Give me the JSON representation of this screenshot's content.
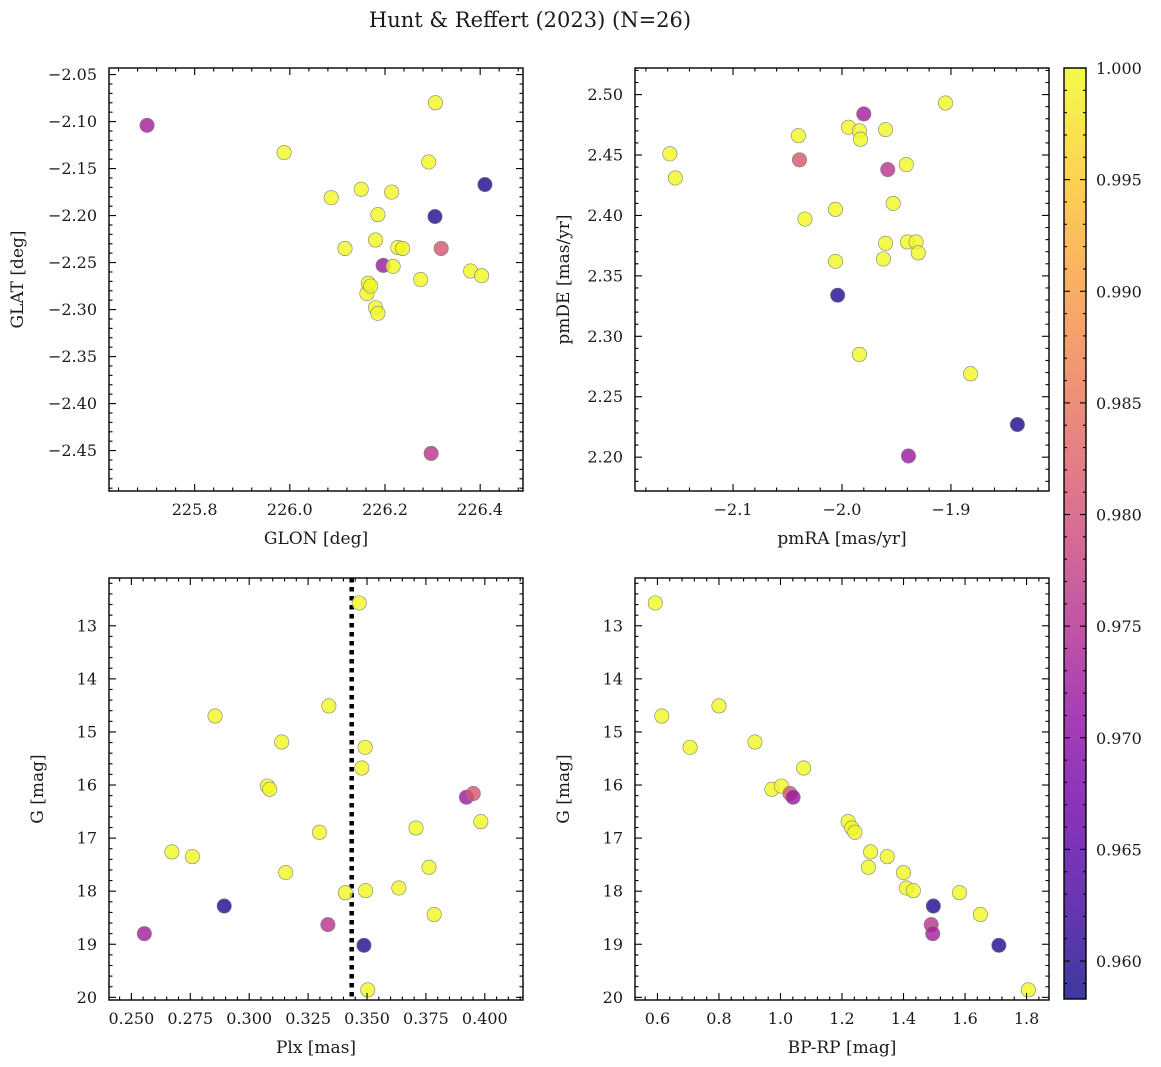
{
  "figure": {
    "title": "Hunt & Reffert (2023) (N=26)",
    "colorbar": {
      "colormap": "plasma",
      "alpha": 0.8,
      "range": [
        0.9583,
        1.0
      ],
      "ticks": [
        "0.960",
        "0.965",
        "0.970",
        "0.975",
        "0.980",
        "0.985",
        "0.990",
        "0.995",
        "1.000"
      ]
    },
    "marker_edge_color": "#808080"
  },
  "chart_data": [
    {
      "type": "scatter",
      "name": "position",
      "xlabel": "GLON [deg]",
      "ylabel": "GLAT [deg]",
      "xlim": [
        225.62,
        226.49
      ],
      "ylim": [
        -2.493,
        -2.043
      ],
      "y_inverted": false,
      "xticks": [
        "225.8",
        "226.0",
        "226.2",
        "226.4"
      ],
      "yticks": [
        "−2.05",
        "−2.10",
        "−2.15",
        "−2.20",
        "−2.25",
        "−2.30",
        "−2.35",
        "−2.40",
        "−2.45"
      ],
      "points": [
        {
          "x": 225.7,
          "y": -2.104,
          "c": 0.973
        },
        {
          "x": 225.988,
          "y": -2.133,
          "c": 1.0
        },
        {
          "x": 226.087,
          "y": -2.181,
          "c": 1.0
        },
        {
          "x": 226.116,
          "y": -2.235,
          "c": 1.0
        },
        {
          "x": 226.15,
          "y": -2.172,
          "c": 1.0
        },
        {
          "x": 226.162,
          "y": -2.283,
          "c": 1.0
        },
        {
          "x": 226.165,
          "y": -2.272,
          "c": 1.0
        },
        {
          "x": 226.17,
          "y": -2.275,
          "c": 1.0
        },
        {
          "x": 226.18,
          "y": -2.226,
          "c": 1.0
        },
        {
          "x": 226.18,
          "y": -2.298,
          "c": 1.0
        },
        {
          "x": 226.185,
          "y": -2.304,
          "c": 1.0
        },
        {
          "x": 226.185,
          "y": -2.199,
          "c": 1.0
        },
        {
          "x": 226.196,
          "y": -2.253,
          "c": 0.972
        },
        {
          "x": 226.214,
          "y": -2.175,
          "c": 1.0
        },
        {
          "x": 226.217,
          "y": -2.254,
          "c": 1.0
        },
        {
          "x": 226.227,
          "y": -2.234,
          "c": 1.0
        },
        {
          "x": 226.237,
          "y": -2.235,
          "c": 1.0
        },
        {
          "x": 226.275,
          "y": -2.268,
          "c": 1.0
        },
        {
          "x": 226.292,
          "y": -2.143,
          "c": 1.0
        },
        {
          "x": 226.306,
          "y": -2.08,
          "c": 1.0
        },
        {
          "x": 226.305,
          "y": -2.201,
          "c": 0.9597
        },
        {
          "x": 226.297,
          "y": -2.453,
          "c": 0.976
        },
        {
          "x": 226.318,
          "y": -2.235,
          "c": 0.981
        },
        {
          "x": 226.38,
          "y": -2.259,
          "c": 1.0
        },
        {
          "x": 226.403,
          "y": -2.264,
          "c": 1.0
        },
        {
          "x": 226.41,
          "y": -2.167,
          "c": 0.9595
        }
      ]
    },
    {
      "type": "scatter",
      "name": "proper-motion",
      "xlabel": "pmRA [mas/yr]",
      "ylabel": "pmDE [mas/yr]",
      "xlim": [
        -2.19,
        -1.81
      ],
      "ylim": [
        2.172,
        2.522
      ],
      "y_inverted": false,
      "xticks": [
        "−2.1",
        "−2.0",
        "−1.9"
      ],
      "yticks": [
        "2.20",
        "2.25",
        "2.30",
        "2.35",
        "2.40",
        "2.45",
        "2.50"
      ],
      "points": [
        {
          "x": -2.158,
          "y": 2.451,
          "c": 1.0
        },
        {
          "x": -2.153,
          "y": 2.431,
          "c": 1.0
        },
        {
          "x": -2.04,
          "y": 2.466,
          "c": 1.0
        },
        {
          "x": -2.039,
          "y": 2.446,
          "c": 0.981
        },
        {
          "x": -2.034,
          "y": 2.397,
          "c": 1.0
        },
        {
          "x": -2.006,
          "y": 2.405,
          "c": 1.0
        },
        {
          "x": -2.006,
          "y": 2.362,
          "c": 1.0
        },
        {
          "x": -2.004,
          "y": 2.334,
          "c": 0.9597
        },
        {
          "x": -1.994,
          "y": 2.473,
          "c": 1.0
        },
        {
          "x": -1.984,
          "y": 2.47,
          "c": 1.0
        },
        {
          "x": -1.983,
          "y": 2.463,
          "c": 1.0
        },
        {
          "x": -1.984,
          "y": 2.285,
          "c": 1.0
        },
        {
          "x": -1.98,
          "y": 2.484,
          "c": 0.973
        },
        {
          "x": -1.962,
          "y": 2.364,
          "c": 1.0
        },
        {
          "x": -1.96,
          "y": 2.471,
          "c": 1.0
        },
        {
          "x": -1.96,
          "y": 2.377,
          "c": 1.0
        },
        {
          "x": -1.958,
          "y": 2.438,
          "c": 0.976
        },
        {
          "x": -1.953,
          "y": 2.41,
          "c": 1.0
        },
        {
          "x": -1.941,
          "y": 2.442,
          "c": 1.0
        },
        {
          "x": -1.94,
          "y": 2.378,
          "c": 1.0
        },
        {
          "x": -1.932,
          "y": 2.378,
          "c": 1.0
        },
        {
          "x": -1.93,
          "y": 2.369,
          "c": 1.0
        },
        {
          "x": -1.939,
          "y": 2.201,
          "c": 0.972
        },
        {
          "x": -1.905,
          "y": 2.493,
          "c": 1.0
        },
        {
          "x": -1.882,
          "y": 2.269,
          "c": 1.0
        },
        {
          "x": -1.839,
          "y": 2.227,
          "c": 0.9595
        }
      ]
    },
    {
      "type": "scatter",
      "name": "parallax",
      "xlabel": "Plx [mas]",
      "ylabel": "G [mag]",
      "xlim": [
        0.2405,
        0.4162
      ],
      "ylim": [
        20.05,
        12.1
      ],
      "y_inverted": true,
      "xticks": [
        "0.250",
        "0.275",
        "0.300",
        "0.325",
        "0.350",
        "0.375",
        "0.400"
      ],
      "yticks": [
        "13",
        "14",
        "15",
        "16",
        "17",
        "18",
        "19",
        "20"
      ],
      "vline": {
        "x": 0.3435,
        "style": "dotted",
        "color": "#000000"
      },
      "points": [
        {
          "x": 0.2555,
          "y": 18.8,
          "c": 0.973
        },
        {
          "x": 0.2672,
          "y": 17.26,
          "c": 1.0
        },
        {
          "x": 0.2759,
          "y": 17.35,
          "c": 1.0
        },
        {
          "x": 0.2855,
          "y": 14.7,
          "c": 1.0
        },
        {
          "x": 0.2894,
          "y": 18.28,
          "c": 0.9595
        },
        {
          "x": 0.3077,
          "y": 16.02,
          "c": 1.0
        },
        {
          "x": 0.3087,
          "y": 16.08,
          "c": 1.0
        },
        {
          "x": 0.3138,
          "y": 15.19,
          "c": 1.0
        },
        {
          "x": 0.3155,
          "y": 17.65,
          "c": 1.0
        },
        {
          "x": 0.3298,
          "y": 16.89,
          "c": 1.0
        },
        {
          "x": 0.3334,
          "y": 18.63,
          "c": 0.976
        },
        {
          "x": 0.3338,
          "y": 14.51,
          "c": 1.0
        },
        {
          "x": 0.3408,
          "y": 18.03,
          "c": 1.0
        },
        {
          "x": 0.3467,
          "y": 12.57,
          "c": 1.0
        },
        {
          "x": 0.3478,
          "y": 15.68,
          "c": 1.0
        },
        {
          "x": 0.3487,
          "y": 19.02,
          "c": 0.9597
        },
        {
          "x": 0.3492,
          "y": 15.29,
          "c": 1.0
        },
        {
          "x": 0.3494,
          "y": 17.99,
          "c": 1.0
        },
        {
          "x": 0.3503,
          "y": 19.86,
          "c": 1.0
        },
        {
          "x": 0.3635,
          "y": 17.94,
          "c": 1.0
        },
        {
          "x": 0.3708,
          "y": 16.81,
          "c": 1.0
        },
        {
          "x": 0.3763,
          "y": 17.55,
          "c": 1.0
        },
        {
          "x": 0.3785,
          "y": 18.44,
          "c": 1.0
        },
        {
          "x": 0.3922,
          "y": 16.23,
          "c": 0.972
        },
        {
          "x": 0.3951,
          "y": 16.16,
          "c": 0.981
        },
        {
          "x": 0.3983,
          "y": 16.69,
          "c": 1.0
        }
      ]
    },
    {
      "type": "scatter",
      "name": "colour-magnitude",
      "xlabel": "BP-RP [mag]",
      "ylabel": "G [mag]",
      "xlim": [
        0.527,
        1.873
      ],
      "ylim": [
        20.05,
        12.1
      ],
      "y_inverted": true,
      "xticks": [
        "0.6",
        "0.8",
        "1.0",
        "1.2",
        "1.4",
        "1.6",
        "1.8"
      ],
      "yticks": [
        "13",
        "14",
        "15",
        "16",
        "17",
        "18",
        "19",
        "20"
      ],
      "points": [
        {
          "x": 0.593,
          "y": 12.57,
          "c": 1.0
        },
        {
          "x": 0.614,
          "y": 14.7,
          "c": 1.0
        },
        {
          "x": 0.706,
          "y": 15.29,
          "c": 1.0
        },
        {
          "x": 0.8,
          "y": 14.51,
          "c": 1.0
        },
        {
          "x": 0.917,
          "y": 15.19,
          "c": 1.0
        },
        {
          "x": 0.972,
          "y": 16.08,
          "c": 1.0
        },
        {
          "x": 1.003,
          "y": 16.02,
          "c": 1.0
        },
        {
          "x": 1.031,
          "y": 16.16,
          "c": 0.981
        },
        {
          "x": 1.041,
          "y": 16.23,
          "c": 0.972
        },
        {
          "x": 1.075,
          "y": 15.68,
          "c": 1.0
        },
        {
          "x": 1.22,
          "y": 16.69,
          "c": 1.0
        },
        {
          "x": 1.232,
          "y": 16.81,
          "c": 1.0
        },
        {
          "x": 1.242,
          "y": 16.89,
          "c": 1.0
        },
        {
          "x": 1.293,
          "y": 17.26,
          "c": 1.0
        },
        {
          "x": 1.286,
          "y": 17.55,
          "c": 1.0
        },
        {
          "x": 1.347,
          "y": 17.35,
          "c": 1.0
        },
        {
          "x": 1.4,
          "y": 17.65,
          "c": 1.0
        },
        {
          "x": 1.409,
          "y": 17.94,
          "c": 1.0
        },
        {
          "x": 1.432,
          "y": 17.99,
          "c": 1.0
        },
        {
          "x": 1.497,
          "y": 18.28,
          "c": 0.9595
        },
        {
          "x": 1.49,
          "y": 18.63,
          "c": 0.976
        },
        {
          "x": 1.495,
          "y": 18.8,
          "c": 0.973
        },
        {
          "x": 1.582,
          "y": 18.03,
          "c": 1.0
        },
        {
          "x": 1.65,
          "y": 18.44,
          "c": 1.0
        },
        {
          "x": 1.71,
          "y": 19.02,
          "c": 0.9597
        },
        {
          "x": 1.806,
          "y": 19.86,
          "c": 1.0
        }
      ]
    }
  ]
}
